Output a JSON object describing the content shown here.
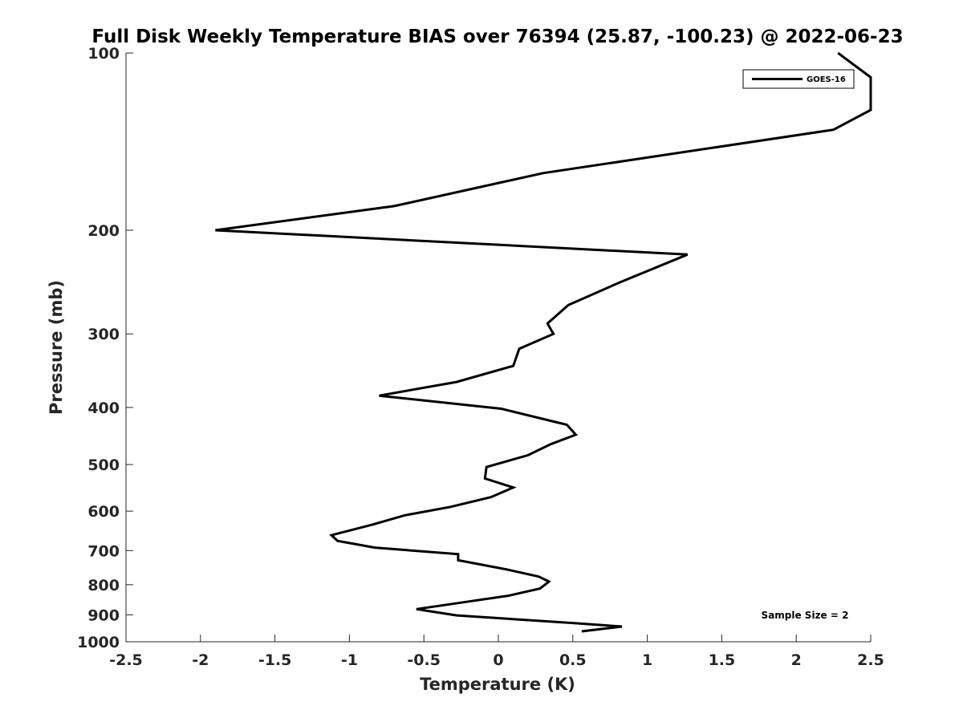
{
  "chart_data": {
    "type": "line",
    "title": "Full Disk Weekly Temperature BIAS over 76394 (25.87, -100.23) @ 2022-06-23",
    "xlabel": "Temperature (K)",
    "ylabel": "Pressure (mb)",
    "xlim": [
      -2.5,
      2.5
    ],
    "ylim": [
      1000,
      100
    ],
    "y_scale": "log",
    "x_ticks": [
      "-2.5",
      "-2",
      "-1.5",
      "-1",
      "-0.5",
      "0",
      "0.5",
      "1",
      "1.5",
      "2",
      "2.5"
    ],
    "y_ticks": [
      "100",
      "200",
      "300",
      "400",
      "500",
      "600",
      "700",
      "800",
      "900",
      "1000"
    ],
    "grid": false,
    "legend": "top-right",
    "annotation": "Sample Size = 2",
    "series": [
      {
        "name": "GOES-16",
        "color": "#000000",
        "points": [
          [
            2.28,
            100
          ],
          [
            2.5,
            110
          ],
          [
            2.5,
            125
          ],
          [
            2.25,
            135
          ],
          [
            0.3,
            160
          ],
          [
            -0.7,
            182
          ],
          [
            -1.9,
            200
          ],
          [
            1.27,
            220
          ],
          [
            0.82,
            245
          ],
          [
            0.47,
            268
          ],
          [
            0.33,
            288
          ],
          [
            0.37,
            300
          ],
          [
            0.14,
            318
          ],
          [
            0.1,
            340
          ],
          [
            -0.28,
            362
          ],
          [
            -0.8,
            382
          ],
          [
            0.02,
            402
          ],
          [
            0.46,
            428
          ],
          [
            0.52,
            445
          ],
          [
            0.35,
            462
          ],
          [
            0.2,
            482
          ],
          [
            -0.08,
            505
          ],
          [
            -0.09,
            528
          ],
          [
            0.1,
            547
          ],
          [
            -0.05,
            568
          ],
          [
            -0.32,
            590
          ],
          [
            -0.63,
            610
          ],
          [
            -0.84,
            632
          ],
          [
            -1.12,
            659
          ],
          [
            -1.08,
            674
          ],
          [
            -0.83,
            692
          ],
          [
            -0.27,
            710
          ],
          [
            -0.27,
            727
          ],
          [
            0.05,
            753
          ],
          [
            0.27,
            775
          ],
          [
            0.34,
            790
          ],
          [
            0.28,
            812
          ],
          [
            0.07,
            835
          ],
          [
            -0.25,
            858
          ],
          [
            -0.55,
            880
          ],
          [
            -0.28,
            902
          ],
          [
            0.52,
            930
          ],
          [
            0.83,
            942
          ],
          [
            0.56,
            960
          ]
        ]
      }
    ]
  }
}
